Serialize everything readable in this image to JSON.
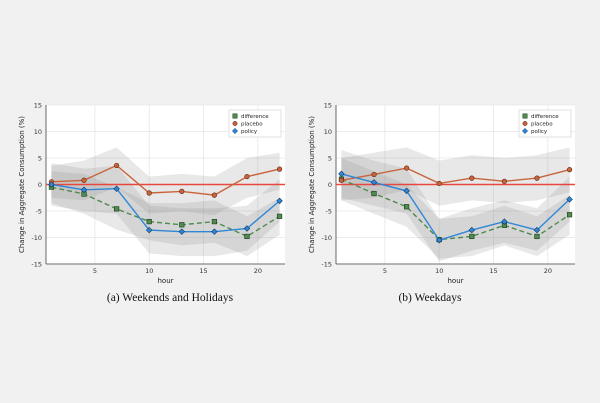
{
  "colors": {
    "background": "#f1f1f1",
    "plot_bg": "#ffffff",
    "grid": "#e6e6e6",
    "band": "#8a8a8a",
    "zero_line": "#e8473f",
    "difference": "#4f8a4f",
    "placebo": "#c8643c",
    "policy": "#2f86d6"
  },
  "chart_data": [
    {
      "type": "line",
      "caption": "(a) Weekends and Holidays",
      "xlabel": "hour",
      "ylabel": "Change in Aggregate Consumption (%)",
      "xlim": [
        0.5,
        22.5
      ],
      "ylim": [
        -15,
        15
      ],
      "xticks": [
        5,
        10,
        15,
        20
      ],
      "yticks": [
        -15,
        -10,
        -5,
        0,
        5,
        10,
        15
      ],
      "xtick_labels": [
        "5",
        "10",
        "15",
        "20"
      ],
      "ytick_labels": [
        "-15",
        "-10",
        "-5",
        "0",
        "5",
        "10",
        "15"
      ],
      "x": [
        1,
        4,
        7,
        10,
        13,
        16,
        19,
        22
      ],
      "zero_line": 0,
      "legend": {
        "position": "top-right",
        "entries": [
          "difference",
          "placebo",
          "policy"
        ]
      },
      "series": [
        {
          "name": "difference",
          "style": "dashed",
          "marker": "square",
          "values": [
            -0.5,
            -1.8,
            -4.6,
            -7.0,
            -7.6,
            -7.0,
            -9.8,
            -6.0
          ],
          "band": {
            "lower": [
              -3.5,
              -5.5,
              -8.5,
              -10.5,
              -11.5,
              -11.0,
              -13.5,
              -9.5
            ],
            "upper": [
              2.5,
              2.0,
              -0.5,
              -3.5,
              -3.5,
              -3.0,
              -6.0,
              -2.5
            ]
          }
        },
        {
          "name": "placebo",
          "style": "solid",
          "marker": "circle",
          "values": [
            0.5,
            0.8,
            3.6,
            -1.6,
            -1.3,
            -2.0,
            1.5,
            2.9
          ],
          "band": {
            "lower": [
              -2.5,
              -3.0,
              -0.5,
              -5.5,
              -5.0,
              -5.8,
              -2.5,
              -1.0
            ],
            "upper": [
              3.5,
              4.5,
              7.0,
              1.5,
              2.0,
              1.5,
              5.0,
              6.0
            ]
          }
        },
        {
          "name": "policy",
          "style": "solid",
          "marker": "diamond",
          "values": [
            0.0,
            -1.0,
            -0.8,
            -8.6,
            -8.9,
            -8.9,
            -8.3,
            -3.1
          ],
          "band": {
            "lower": [
              -4.0,
              -5.0,
              -5.5,
              -13.0,
              -13.5,
              -13.5,
              -12.5,
              -7.0
            ],
            "upper": [
              4.0,
              3.0,
              3.5,
              -4.0,
              -4.5,
              -4.5,
              -4.0,
              1.0
            ]
          }
        }
      ]
    },
    {
      "type": "line",
      "caption": "(b) Weekdays",
      "xlabel": "hour",
      "ylabel": "Change in Aggregate Consumption (%)",
      "xlim": [
        0.5,
        22.5
      ],
      "ylim": [
        -15,
        15
      ],
      "xticks": [
        5,
        10,
        15,
        20
      ],
      "yticks": [
        -15,
        -10,
        -5,
        0,
        5,
        10,
        15
      ],
      "xtick_labels": [
        "5",
        "10",
        "15",
        "20"
      ],
      "ytick_labels": [
        "-15",
        "-10",
        "-5",
        "0",
        "5",
        "10",
        "15"
      ],
      "x": [
        1,
        4,
        7,
        10,
        13,
        16,
        19,
        22
      ],
      "zero_line": 0,
      "legend": {
        "position": "top-right",
        "entries": [
          "difference",
          "placebo",
          "policy"
        ]
      },
      "series": [
        {
          "name": "difference",
          "style": "dashed",
          "marker": "square",
          "values": [
            1.0,
            -1.7,
            -4.2,
            -10.4,
            -9.8,
            -7.7,
            -9.8,
            -5.7
          ],
          "band": {
            "lower": [
              -3.0,
              -5.5,
              -8.0,
              -14.0,
              -13.5,
              -11.5,
              -13.5,
              -9.5
            ],
            "upper": [
              5.0,
              2.5,
              0.0,
              -6.5,
              -6.0,
              -4.0,
              -6.0,
              -2.0
            ]
          }
        },
        {
          "name": "placebo",
          "style": "solid",
          "marker": "circle",
          "values": [
            0.8,
            1.9,
            3.1,
            0.2,
            1.2,
            0.6,
            1.2,
            2.8
          ],
          "band": {
            "lower": [
              -3.0,
              -2.5,
              -1.0,
              -4.0,
              -3.0,
              -3.5,
              -3.0,
              -1.5
            ],
            "upper": [
              5.0,
              6.0,
              7.0,
              4.5,
              5.5,
              5.0,
              5.5,
              7.0
            ]
          }
        },
        {
          "name": "policy",
          "style": "solid",
          "marker": "diamond",
          "values": [
            2.0,
            0.4,
            -1.2,
            -10.5,
            -8.6,
            -7.0,
            -8.6,
            -2.8
          ],
          "band": {
            "lower": [
              -2.5,
              -4.0,
              -5.5,
              -14.5,
              -12.5,
              -11.0,
              -12.5,
              -7.0
            ],
            "upper": [
              6.5,
              4.5,
              3.0,
              -6.5,
              -4.5,
              -3.0,
              -4.5,
              1.5
            ]
          }
        }
      ]
    }
  ]
}
